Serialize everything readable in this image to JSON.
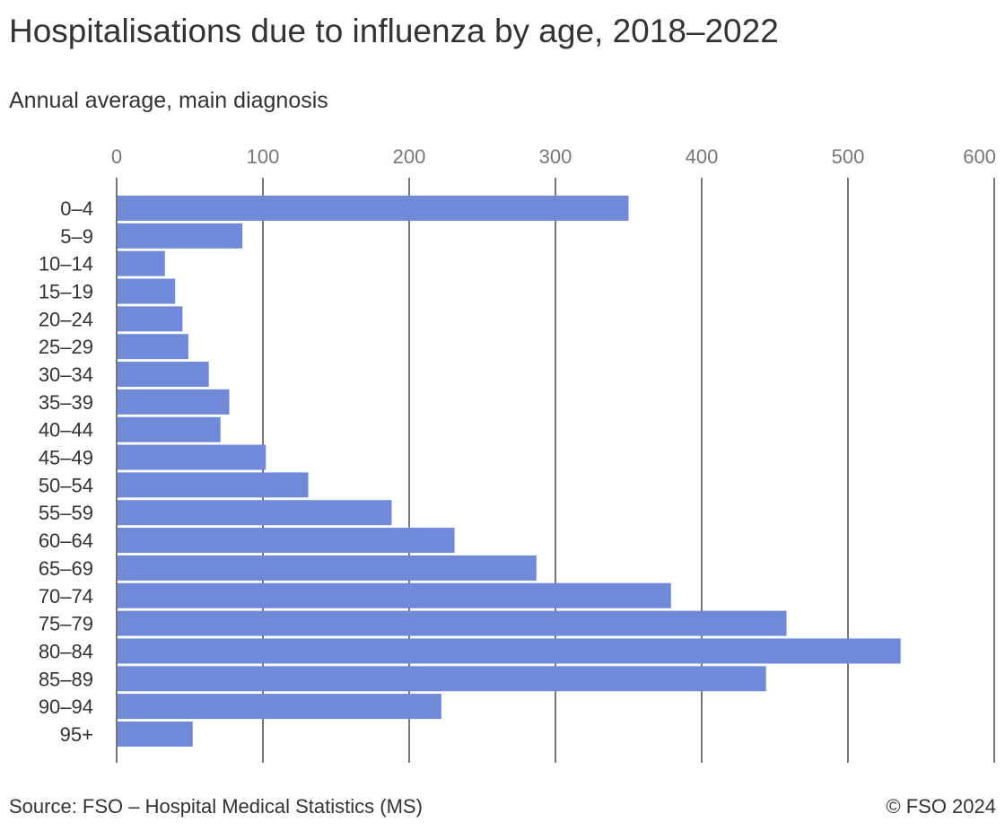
{
  "title": "Hospitalisations due to influenza by age, 2018–2022",
  "subtitle": "Annual average, main diagnosis",
  "source": "Source: FSO – Hospital Medical Statistics (MS)",
  "copyright": "© FSO 2024",
  "chart_data": {
    "type": "bar",
    "orientation": "horizontal",
    "categories": [
      "0–4",
      "5–9",
      "10–14",
      "15–19",
      "20–24",
      "25–29",
      "30–34",
      "35–39",
      "40–44",
      "45–49",
      "50–54",
      "55–59",
      "60–64",
      "65–69",
      "70–74",
      "75–79",
      "80–84",
      "85–89",
      "90–94",
      "95+"
    ],
    "values": [
      350,
      86,
      33,
      40,
      45,
      49,
      63,
      77,
      71,
      102,
      131,
      188,
      231,
      287,
      379,
      458,
      536,
      444,
      222,
      52
    ],
    "xlim": [
      0,
      600
    ],
    "xticks": [
      "0",
      "100",
      "200",
      "300",
      "400",
      "500",
      "600"
    ],
    "xaxis_position": "top",
    "grid": true,
    "bar_color": "#7089d8",
    "grid_color": "#777777"
  }
}
